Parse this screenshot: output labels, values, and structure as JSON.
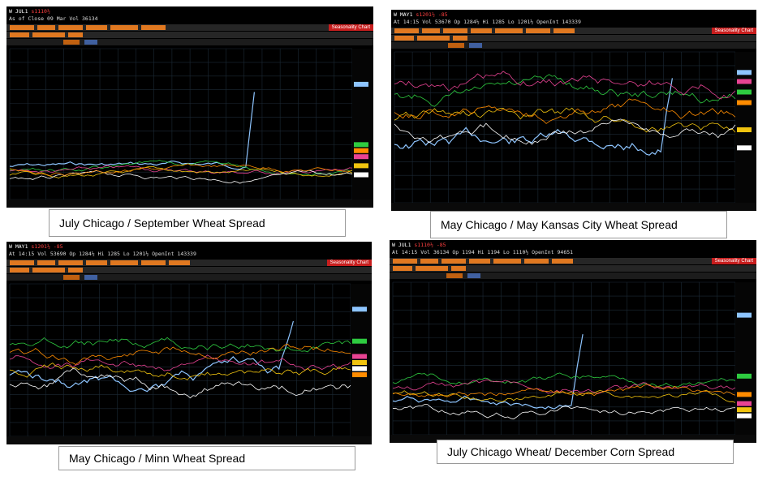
{
  "panels": [
    {
      "id": "p1",
      "header": {
        "ticker": "W JUL1",
        "price": "s1110½",
        "change": "",
        "line2": "As of Close 09 Mar  Vol 36134",
        "right": "Seasonality Chart"
      },
      "caption": "July Chicago / September Wheat Spread",
      "accent": "#ff3b30"
    },
    {
      "id": "p2",
      "header": {
        "ticker": "W MAY1",
        "price": "s1201½",
        "change": "-85",
        "line2": "At 14:15  Vol 53670  Op 1284½  Hi 1285  Lo 1201½  OpenInt 143339",
        "right": "Seasonality Chart"
      },
      "caption": "May Chicago / May Kansas City Wheat Spread",
      "accent": "#ff3b30"
    },
    {
      "id": "p3",
      "header": {
        "ticker": "W MAY1",
        "price": "s1201½",
        "change": "-85",
        "line2": "At 14:15  Vol 53690  Op 1284½  Hi 1285  Lo 1201½  OpenInt 143339",
        "right": "Seasonality Chart"
      },
      "caption": "May Chicago / Minn Wheat Spread",
      "accent": "#ff3b30"
    },
    {
      "id": "p4",
      "header": {
        "ticker": "W JUL1",
        "price": "s1110½",
        "change": "-85",
        "line2": "At 14:15  Vol 36134  Op 1194  Hi 1194  Lo 1110½  OpenInt 94651",
        "right": "Seasonality Chart"
      },
      "caption": "July Chicago Wheat/ December Corn Spread",
      "accent": "#ff3b30"
    }
  ],
  "chart_data": [
    {
      "type": "line",
      "title": "July Chicago / September Wheat Spread",
      "series_colors": [
        "#8ec5ff",
        "#2ecc40",
        "#e84393",
        "#f1c40f",
        "#ffffff",
        "#ff8c00"
      ],
      "note": "Seasonal lines overlaid; current year (light blue) spikes sharply near the right end"
    },
    {
      "type": "line",
      "title": "May Chicago / May Kansas City Wheat Spread",
      "series_colors": [
        "#8ec5ff",
        "#2ecc40",
        "#e84393",
        "#f1c40f",
        "#ffffff",
        "#ff8c00"
      ],
      "note": "Multiple seasonal lines; current year (light blue) shows a spike near the right side"
    },
    {
      "type": "line",
      "title": "May Chicago / Minn Wheat Spread",
      "series_colors": [
        "#8ec5ff",
        "#2ecc40",
        "#e84393",
        "#f1c40f",
        "#ffffff",
        "#ff8c00"
      ],
      "note": "Seasonal lines; current year (light blue) rises steeply near the right side"
    },
    {
      "type": "line",
      "title": "July Chicago Wheat/ December Corn Spread",
      "series_colors": [
        "#8ec5ff",
        "#2ecc40",
        "#e84393",
        "#f1c40f",
        "#ffffff",
        "#ff8c00"
      ],
      "note": "Seasonal lines; current year (light blue) spikes in the middle of the chart"
    }
  ]
}
